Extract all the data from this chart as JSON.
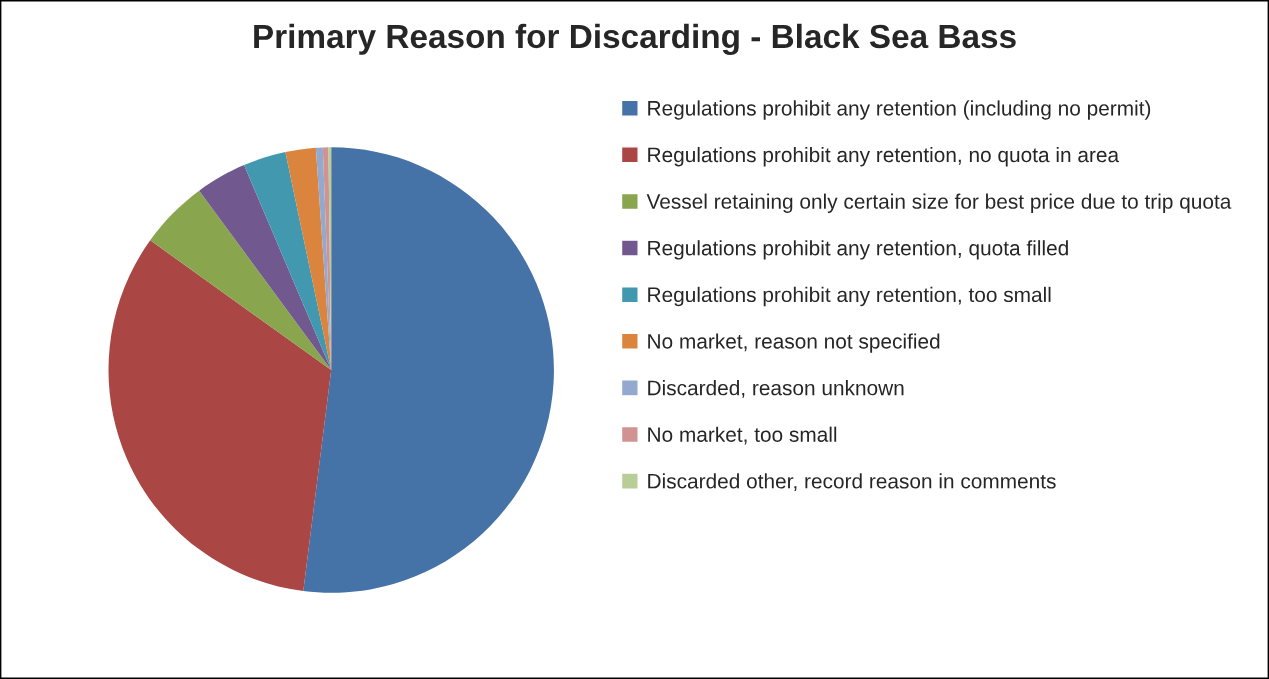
{
  "chart_data": {
    "type": "pie",
    "title": "Primary Reason for Discarding - Black Sea Bass",
    "categories": [
      "Regulations prohibit any retention (including no permit)",
      "Regulations prohibit any retention, no quota in area",
      "Vessel retaining only certain size for best price due to trip quota",
      "Regulations prohibit any retention, quota filled",
      "Regulations prohibit any retention, too small",
      "No market, reason not specified",
      "Discarded, reason unknown",
      "No market, too small",
      "Discarded other, record reason in comments"
    ],
    "values": [
      52.0,
      32.9,
      5.0,
      3.7,
      3.1,
      2.2,
      0.5,
      0.4,
      0.2
    ],
    "colors": [
      "#4572a7",
      "#aa4643",
      "#89a54e",
      "#71588f",
      "#4198af",
      "#db843d",
      "#93a9cf",
      "#d19392",
      "#b9cd96"
    ],
    "legend": "right"
  }
}
